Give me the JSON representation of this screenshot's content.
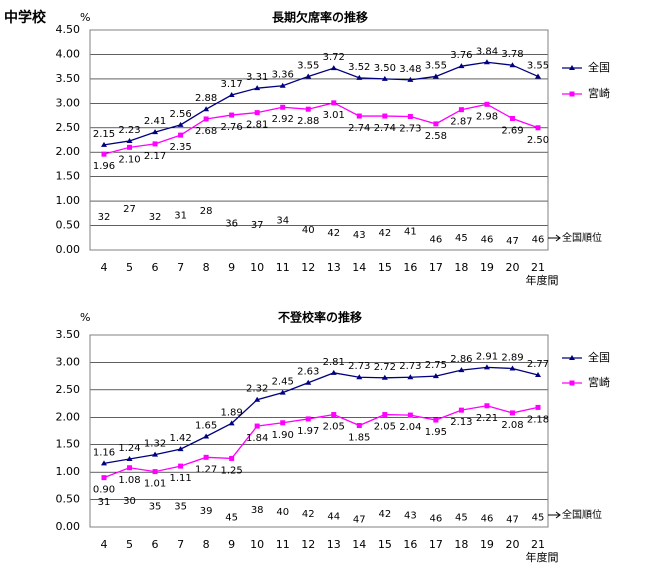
{
  "heading": "中学校",
  "chart_data": [
    {
      "type": "line",
      "title": "長期欠席率の推移",
      "y_unit": "%",
      "x_label": "年度間",
      "categories": [
        "4",
        "5",
        "6",
        "7",
        "8",
        "9",
        "10",
        "11",
        "12",
        "13",
        "14",
        "15",
        "16",
        "17",
        "18",
        "19",
        "20",
        "21"
      ],
      "ylim": [
        0,
        4.5
      ],
      "yticks": [
        {
          "value": 0,
          "label": "0.00"
        },
        {
          "value": 0.5,
          "label": "0.50"
        },
        {
          "value": 1,
          "label": "1.00"
        },
        {
          "value": 1.5,
          "label": "1.50"
        },
        {
          "value": 2,
          "label": "2.00"
        },
        {
          "value": 2.5,
          "label": "2.50"
        },
        {
          "value": 3,
          "label": "3.00"
        },
        {
          "value": 3.5,
          "label": "3.50"
        },
        {
          "value": 4,
          "label": "4.00"
        },
        {
          "value": 4.5,
          "label": "4.50"
        }
      ],
      "grid": true,
      "series": [
        {
          "name": "全国",
          "color": "#000080",
          "marker": "triangle",
          "values": [
            2.15,
            2.23,
            2.41,
            2.56,
            2.88,
            3.17,
            3.31,
            3.36,
            3.55,
            3.72,
            3.52,
            3.5,
            3.48,
            3.55,
            3.76,
            3.84,
            3.78,
            3.55
          ],
          "value_labels": [
            "2.15",
            "2.23",
            "2.41",
            "2.56",
            "2.88",
            "3.17",
            "3.31",
            "3.36",
            "3.55",
            "3.72",
            "3.52",
            "3.50",
            "3.48",
            "3.55",
            "3.76",
            "3.84",
            "3.78",
            "3.55"
          ]
        },
        {
          "name": "宮崎",
          "color": "#ff00ff",
          "marker": "square",
          "values": [
            1.96,
            2.1,
            2.17,
            2.35,
            2.68,
            2.76,
            2.81,
            2.92,
            2.88,
            3.01,
            2.74,
            2.74,
            2.73,
            2.58,
            2.87,
            2.98,
            2.69,
            2.5
          ],
          "value_labels": [
            "1.96",
            "2.10",
            "2.17",
            "2.35",
            "2.68",
            "2.76",
            "2.81",
            "2.92",
            "2.88",
            "3.01",
            "2.74",
            "2.74",
            "2.73",
            "2.58",
            "2.87",
            "2.98",
            "2.69",
            "2.50"
          ]
        }
      ],
      "ranks": {
        "label": "全国順位",
        "values": [
          32,
          27,
          32,
          31,
          28,
          36,
          37,
          34,
          40,
          42,
          43,
          42,
          41,
          46,
          45,
          46,
          47,
          46
        ]
      }
    },
    {
      "type": "line",
      "title": "不登校率の推移",
      "y_unit": "%",
      "x_label": "年度間",
      "categories": [
        "4",
        "5",
        "6",
        "7",
        "8",
        "9",
        "10",
        "11",
        "12",
        "13",
        "14",
        "15",
        "16",
        "17",
        "18",
        "19",
        "20",
        "21"
      ],
      "ylim": [
        0,
        3.5
      ],
      "yticks": [
        {
          "value": 0,
          "label": "0.00"
        },
        {
          "value": 0.5,
          "label": "0.50"
        },
        {
          "value": 1,
          "label": "1.00"
        },
        {
          "value": 1.5,
          "label": "1.50"
        },
        {
          "value": 2,
          "label": "2.00"
        },
        {
          "value": 2.5,
          "label": "2.50"
        },
        {
          "value": 3,
          "label": "3.00"
        },
        {
          "value": 3.5,
          "label": "3.50"
        }
      ],
      "grid": true,
      "series": [
        {
          "name": "全国",
          "color": "#000080",
          "marker": "triangle",
          "values": [
            1.16,
            1.24,
            1.32,
            1.42,
            1.65,
            1.89,
            2.32,
            2.45,
            2.63,
            2.81,
            2.73,
            2.72,
            2.73,
            2.75,
            2.86,
            2.91,
            2.89,
            2.77
          ],
          "value_labels": [
            "1.16",
            "1.24",
            "1.32",
            "1.42",
            "1.65",
            "1.89",
            "2.32",
            "2.45",
            "2.63",
            "2.81",
            "2.73",
            "2.72",
            "2.73",
            "2.75",
            "2.86",
            "2.91",
            "2.89",
            "2.77"
          ]
        },
        {
          "name": "宮崎",
          "color": "#ff00ff",
          "marker": "square",
          "values": [
            0.9,
            1.08,
            1.01,
            1.11,
            1.27,
            1.25,
            1.84,
            1.9,
            1.97,
            2.05,
            1.85,
            2.05,
            2.04,
            1.95,
            2.13,
            2.21,
            2.08,
            2.18
          ],
          "value_labels": [
            "0.90",
            "1.08",
            "1.01",
            "1.11",
            "1.27",
            "1.25",
            "1.84",
            "1.90",
            "1.97",
            "2.05",
            "1.85",
            "2.05",
            "2.04",
            "1.95",
            "2.13",
            "2.21",
            "2.08",
            "2.18"
          ]
        }
      ],
      "ranks": {
        "label": "全国順位",
        "values": [
          31,
          30,
          35,
          35,
          39,
          45,
          38,
          40,
          42,
          44,
          47,
          42,
          43,
          46,
          45,
          46,
          47,
          45
        ]
      }
    }
  ]
}
